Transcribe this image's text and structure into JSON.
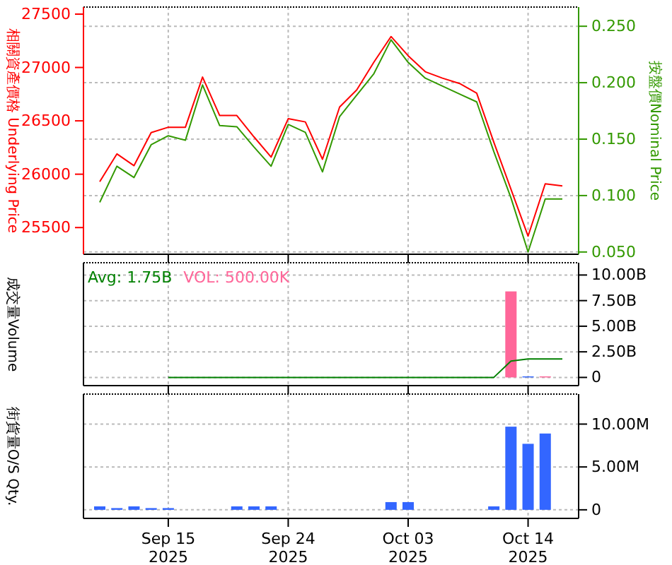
{
  "chart_data": [
    {
      "type": "line",
      "ylabel": "相關資產價格 Underlying Price",
      "y2label": "按盤價Nominal Price",
      "ylim": [
        25250,
        27566
      ],
      "yticks": [
        25500,
        26000,
        26500,
        27000,
        27500
      ],
      "y2lim": [
        0.048,
        0.267
      ],
      "y2ticks": [
        {
          "value": 0.05,
          "label": "0.050"
        },
        {
          "value": 0.1,
          "label": "0.100"
        },
        {
          "value": 0.15,
          "label": "0.150"
        },
        {
          "value": 0.2,
          "label": "0.200"
        },
        {
          "value": 0.25,
          "label": "0.250"
        }
      ],
      "grid": true,
      "tick_labels": "y",
      "series": [
        {
          "color": "#ff0000",
          "values": [
            25930,
            26190,
            26080,
            26390,
            26440,
            26440,
            26910,
            26550,
            26550,
            26350,
            26160,
            26520,
            26490,
            26140,
            26630,
            26790,
            27050,
            27290,
            27110,
            26960,
            26900,
            26850,
            26760,
            26300,
            25860,
            25420,
            25910,
            25890
          ]
        },
        {
          "color": "#339900",
          "axis": "y2",
          "values": [
            0.094,
            0.126,
            0.116,
            0.145,
            0.153,
            0.149,
            0.198,
            0.162,
            0.161,
            0.143,
            0.126,
            0.163,
            0.156,
            0.121,
            0.17,
            0.189,
            0.208,
            0.238,
            0.218,
            0.204,
            0.197,
            0.19,
            0.183,
            0.139,
            0.098,
            0.05,
            0.097,
            0.097
          ]
        }
      ]
    },
    {
      "type": "bar",
      "ylabel": "成交量Volume",
      "annotations": [
        "Avg: 1.75B",
        "VOL: 500.00K"
      ],
      "ylim": [
        -0.8,
        11.2
      ],
      "yticks": [
        0,
        {
          "value": 2.5,
          "label": "2.50B"
        },
        {
          "value": 5,
          "label": "5.00B"
        },
        {
          "value": 7.5,
          "label": "7.50B"
        },
        {
          "value": 10,
          "label": "10.00B"
        }
      ],
      "grid": true,
      "tick_labels": "y",
      "series": [
        {
          "color": "#ff6699",
          "colors": [
            null,
            null,
            null,
            null,
            null,
            null,
            null,
            null,
            null,
            null,
            null,
            null,
            null,
            null,
            null,
            null,
            null,
            null,
            null,
            null,
            null,
            null,
            null,
            null,
            "#ff6699",
            "#3366ff",
            "#ff6699",
            null
          ],
          "values": [
            null,
            null,
            null,
            null,
            null,
            null,
            null,
            null,
            null,
            null,
            null,
            null,
            null,
            null,
            null,
            null,
            null,
            null,
            null,
            null,
            null,
            null,
            null,
            null,
            8.4,
            0.1,
            0.1,
            null
          ]
        },
        {
          "type": "line",
          "color": "#008000",
          "values": [
            null,
            null,
            null,
            null,
            0,
            0,
            0,
            0,
            0,
            0,
            0,
            0,
            0,
            0,
            0,
            0,
            0,
            0,
            0,
            0,
            0,
            0,
            0,
            0,
            1.6,
            1.8,
            1.8,
            1.8
          ]
        }
      ]
    },
    {
      "type": "bar",
      "ylabel": "街貨量O/S Qty.",
      "categories": [
        null,
        null,
        null,
        null,
        "Sep 15 2025",
        null,
        null,
        null,
        null,
        null,
        null,
        "Sep 24 2025",
        null,
        null,
        null,
        null,
        null,
        null,
        "Oct 03 2025",
        null,
        null,
        null,
        null,
        null,
        null,
        "Oct 14 2025",
        null,
        null
      ],
      "ylim": [
        -1,
        13.5
      ],
      "yticks": [
        0,
        {
          "value": 5,
          "label": "5.00M"
        },
        {
          "value": 10,
          "label": "10.00M"
        }
      ],
      "grid": true,
      "series": [
        {
          "color": "#3366ff",
          "values": [
            0.4,
            0.2,
            0.4,
            0.2,
            0.2,
            null,
            null,
            null,
            0.4,
            0.4,
            0.4,
            null,
            null,
            null,
            null,
            null,
            null,
            0.9,
            0.9,
            null,
            null,
            null,
            null,
            0.4,
            9.7,
            7.7,
            8.9,
            null
          ]
        }
      ]
    }
  ]
}
